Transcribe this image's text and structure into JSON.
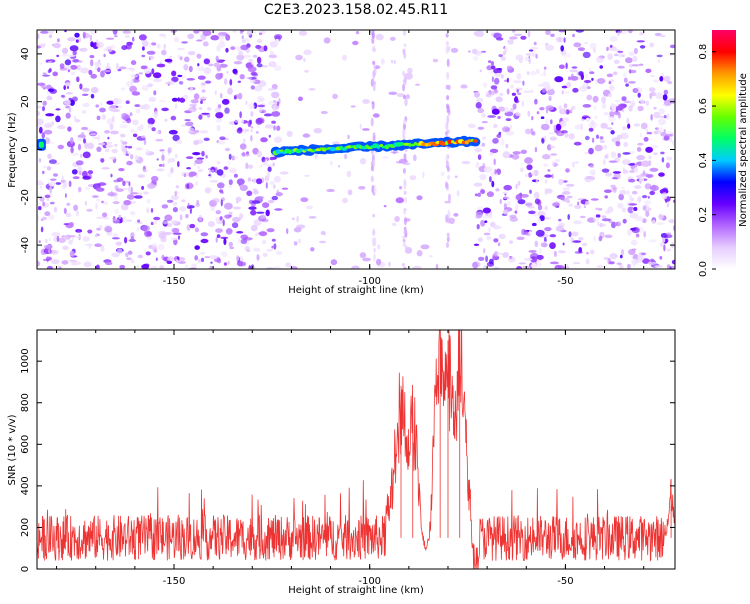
{
  "title": "C2E3.2023.158.02.45.R11",
  "chart_data": [
    {
      "type": "heatmap",
      "xlabel": "Height of straight line (km)",
      "ylabel": "Frequency (Hz)",
      "xlim": [
        -185,
        -22
      ],
      "ylim": [
        -50,
        50
      ],
      "xticks": [
        -150,
        -100,
        -50
      ],
      "yticks": [
        -40,
        -20,
        0,
        20,
        40
      ],
      "colorbar": {
        "label": "Normalized spectral amplitude",
        "range": [
          0,
          0.88
        ],
        "ticks": [
          0.0,
          0.2,
          0.4,
          0.6,
          0.8
        ],
        "colors": [
          "#ffffff",
          "#e6ccff",
          "#b366ff",
          "#6600ff",
          "#0000ff",
          "#00ccff",
          "#00ff66",
          "#66ff00",
          "#ffff00",
          "#ff9900",
          "#ff0000",
          "#ff0066"
        ]
      },
      "signal_track": {
        "x_start": -124,
        "x_end": -73,
        "freq_start": -1,
        "freq_end": 3.5,
        "edge_feature_x": -184,
        "edge_feature_freq": 2
      },
      "low_noise_region": [
        -123,
        -73
      ]
    },
    {
      "type": "line",
      "xlabel": "Height of straight line (km)",
      "ylabel": "SNR (10 * v/v)",
      "xlim": [
        -185,
        -22
      ],
      "ylim": [
        0,
        1150
      ],
      "xticks": [
        -150,
        -100,
        -50
      ],
      "yticks": [
        0,
        200,
        400,
        600,
        800,
        1000
      ],
      "line_color": "#ee3333",
      "noise_baseline": 150,
      "peaks": [
        {
          "x": -92,
          "y": 850
        },
        {
          "x": -89,
          "y": 800
        },
        {
          "x": -82,
          "y": 1150
        },
        {
          "x": -80,
          "y": 1100
        },
        {
          "x": -77,
          "y": 1150
        },
        {
          "x": -23,
          "y": 430
        }
      ]
    }
  ]
}
